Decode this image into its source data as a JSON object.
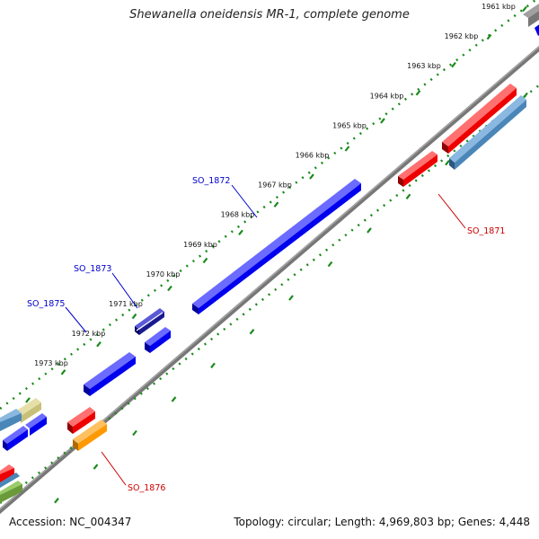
{
  "title": "Shewanella oneidensis MR-1, complete genome",
  "footer": {
    "accession": "Accession: NC_004347",
    "summary": "Topology: circular; Length: 4,969,803 bp; Genes: 4,448"
  },
  "ticks": [
    "1961 kbp",
    "1962 kbp",
    "1963 kbp",
    "1964 kbp",
    "1965 kbp",
    "1966 kbp",
    "1967 kbp",
    "1968 kbp",
    "1969 kbp",
    "1970 kbp",
    "1971 kbp",
    "1972 kbp",
    "1973 kbp"
  ],
  "gene_labels": [
    {
      "text": "SO_1872",
      "color": "#0000cc"
    },
    {
      "text": "SO_1873",
      "color": "#0000cc"
    },
    {
      "text": "SO_1875",
      "color": "#0000cc"
    },
    {
      "text": "SO_1871",
      "color": "#cc0000"
    },
    {
      "text": "SO_1876",
      "color": "#cc0000"
    }
  ],
  "colors": {
    "backbone": "#7a7a7a",
    "ruler": "#1a8a1a",
    "gene_blue": "#0000ee",
    "gene_red": "#ee0000",
    "gene_steelblue": "#4a86b8",
    "gene_orange": "#ff9900",
    "gene_khaki": "#c8c078",
    "gene_grey": "#777777",
    "gene_olive": "#6a9a3a",
    "gene_navy": "#1a1a90"
  }
}
